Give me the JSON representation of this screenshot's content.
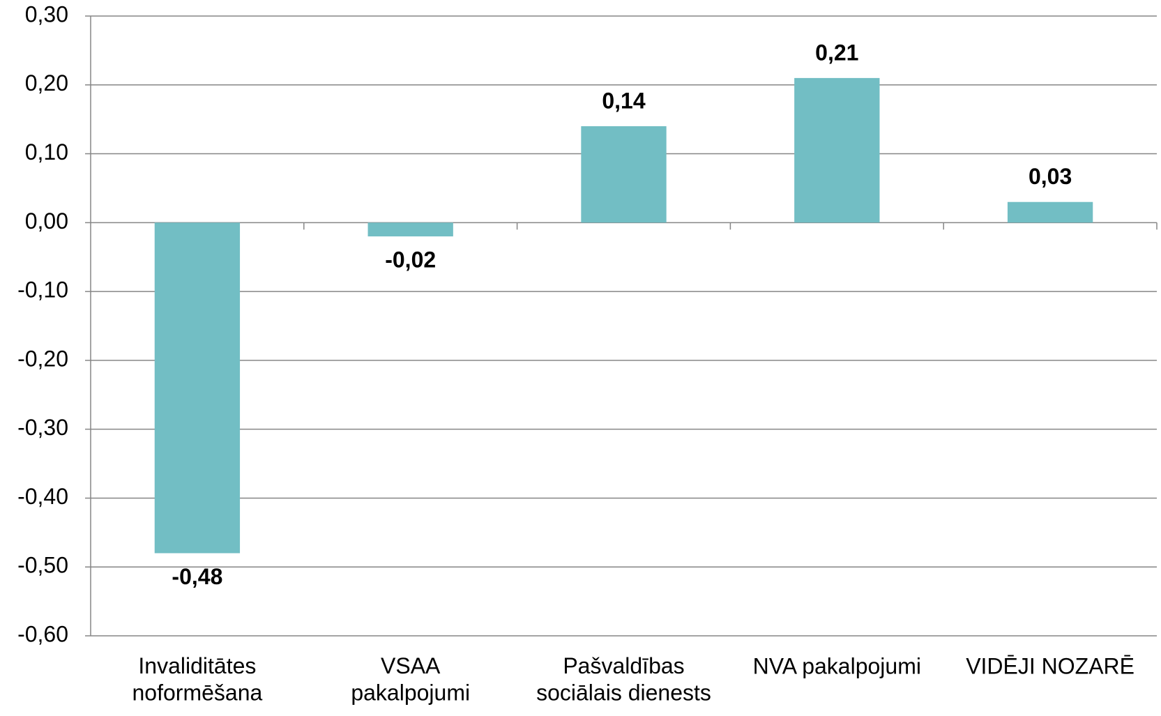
{
  "chart_data": {
    "type": "bar",
    "categories": [
      "Invaliditātes\nnoformēšana",
      "VSAA\npakalpojumi",
      "Pašvaldības\nsociālais dienests",
      "NVA pakalpojumi",
      "VIDĒJI NOZARĒ"
    ],
    "values": [
      -0.48,
      -0.02,
      0.14,
      0.21,
      0.03
    ],
    "value_labels": [
      "-0,48",
      "-0,02",
      "0,14",
      "0,21",
      "0,03"
    ],
    "color": "#72bec4",
    "ylim": [
      -0.6,
      0.3
    ],
    "yticks": [
      {
        "value": -0.6,
        "label": "-0,60"
      },
      {
        "value": -0.5,
        "label": "-0,50"
      },
      {
        "value": -0.4,
        "label": "-0,40"
      },
      {
        "value": -0.3,
        "label": "-0,30"
      },
      {
        "value": -0.2,
        "label": "-0,20"
      },
      {
        "value": -0.1,
        "label": "-0,10"
      },
      {
        "value": 0,
        "label": "0,00"
      },
      {
        "value": 0.1,
        "label": "0,10"
      },
      {
        "value": 0.2,
        "label": "0,20"
      },
      {
        "value": 0.3,
        "label": "0,30"
      }
    ],
    "grid": true
  }
}
